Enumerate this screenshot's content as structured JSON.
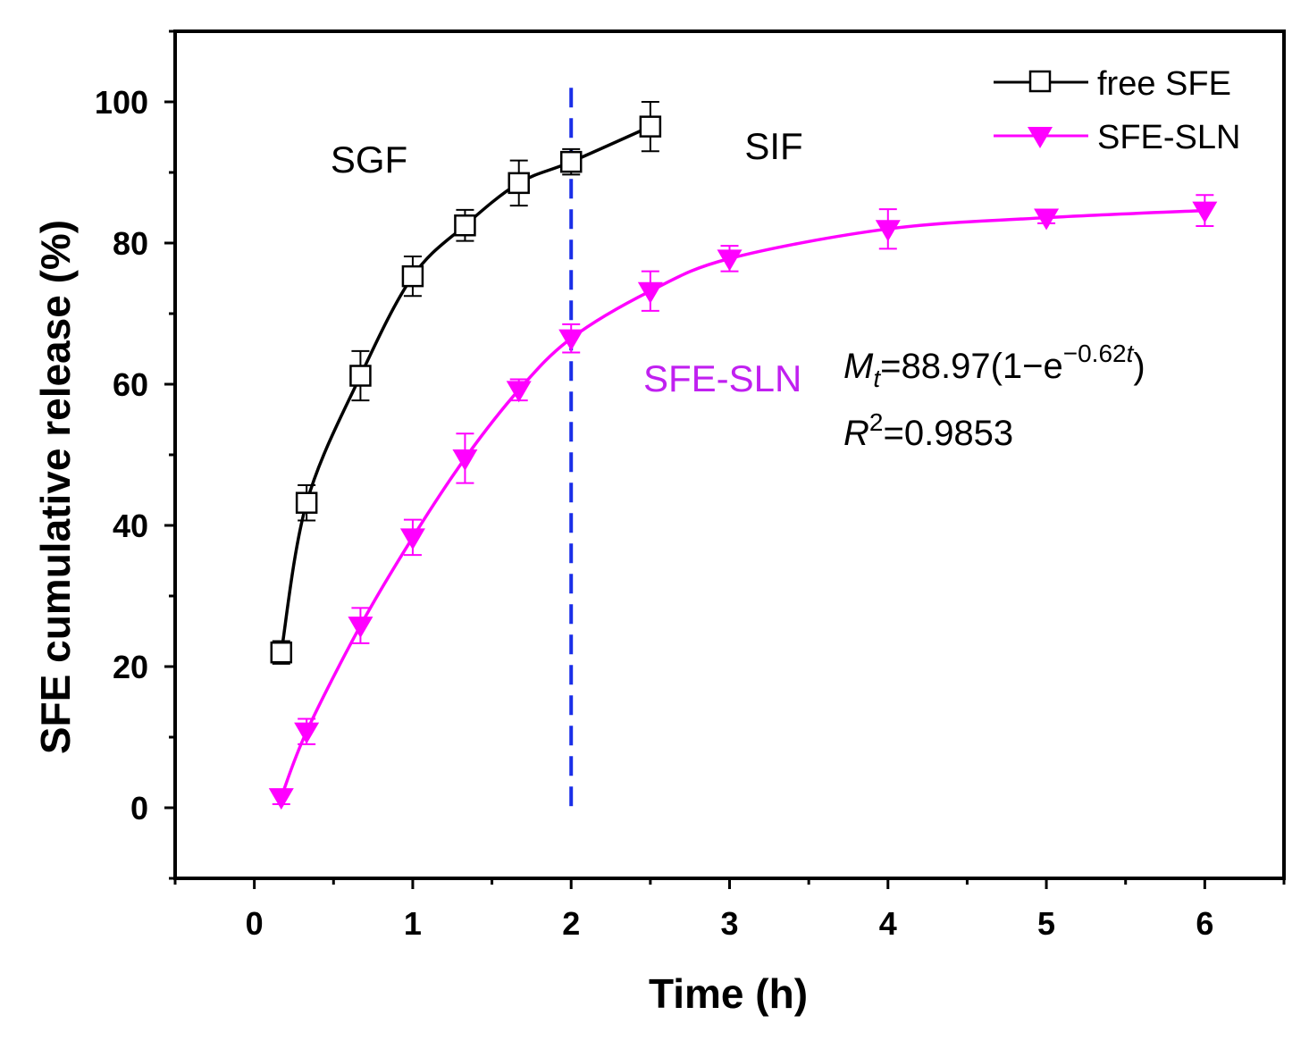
{
  "chart_data": {
    "type": "line",
    "xlabel": "Time (h)",
    "ylabel": "SFE cumulative release (%)",
    "xlim": [
      -0.5,
      6.5
    ],
    "ylim": [
      -10,
      110
    ],
    "xticks": [
      0,
      1,
      2,
      3,
      4,
      5,
      6
    ],
    "yticks": [
      0,
      20,
      40,
      60,
      80,
      100
    ],
    "grid": false,
    "legend_position": "top-right",
    "series": [
      {
        "name": "free SFE",
        "color": "#000000",
        "marker": "open-square",
        "x": [
          0.17,
          0.33,
          0.67,
          1.0,
          1.33,
          1.67,
          2.0,
          2.5
        ],
        "y": [
          22.0,
          43.2,
          61.2,
          75.3,
          82.5,
          88.5,
          91.5,
          96.5
        ],
        "error": [
          1.6,
          2.5,
          3.5,
          2.8,
          2.2,
          3.2,
          1.8,
          3.5
        ]
      },
      {
        "name": "SFE-SLN",
        "color": "#ff00ff",
        "marker": "filled-down-triangle",
        "x": [
          0.17,
          0.33,
          0.67,
          1.0,
          1.33,
          1.67,
          2.0,
          2.5,
          3.0,
          4.0,
          5.0,
          6.0
        ],
        "y": [
          1.5,
          10.8,
          25.8,
          38.3,
          49.5,
          59.2,
          66.5,
          73.2,
          77.8,
          82.0,
          83.6,
          84.6
        ],
        "error": [
          1.0,
          1.8,
          2.5,
          2.5,
          3.5,
          1.5,
          2.0,
          2.8,
          1.8,
          2.8,
          0.8,
          2.2
        ]
      }
    ],
    "annotations": {
      "divider_x": 2,
      "divider_color": "#1a2ee8",
      "region_left": "SGF",
      "region_right": "SIF",
      "fit_series_label": "SFE-SLN",
      "fit_series_color": "#c020f0",
      "equation": {
        "symbol": "M",
        "subscript": "t",
        "body": "=88.97(1−e",
        "exponent_coeff": "−0.62",
        "exponent_var": "t",
        "close": ")"
      },
      "r_squared": {
        "symbol": "R",
        "power": "2",
        "value": "=0.9853"
      }
    }
  }
}
